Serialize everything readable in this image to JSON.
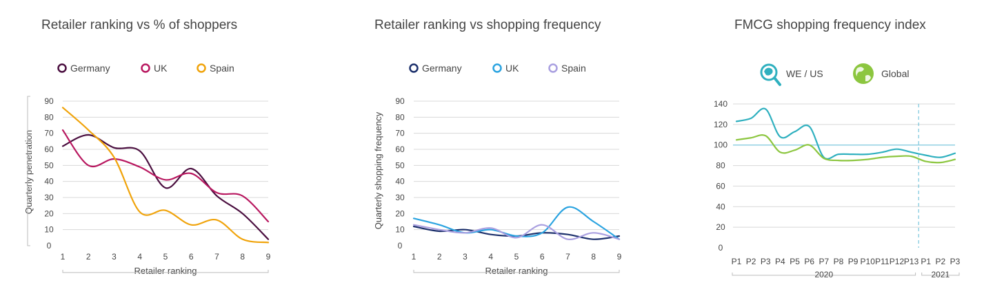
{
  "chart_data": [
    {
      "type": "line",
      "title": "Retailer ranking vs % of shoppers",
      "xlabel": "Retailer ranking",
      "ylabel": "Quarterly penetration",
      "x": [
        1,
        2,
        3,
        4,
        5,
        6,
        7,
        8,
        9
      ],
      "yticks": [
        0,
        10,
        20,
        30,
        40,
        50,
        60,
        70,
        80,
        90
      ],
      "ylim": [
        0,
        90
      ],
      "legend_position": "top",
      "series": [
        {
          "name": "Germany",
          "color": "#4a0e3f",
          "values": [
            62,
            69,
            61,
            59,
            36,
            48,
            31,
            20,
            4
          ]
        },
        {
          "name": "UK",
          "color": "#b8175f",
          "values": [
            72,
            50,
            54,
            49,
            41,
            45,
            33,
            31,
            15
          ]
        },
        {
          "name": "Spain",
          "color": "#f0a30a",
          "values": [
            86,
            72,
            55,
            21,
            22,
            13,
            16,
            4,
            2
          ]
        }
      ]
    },
    {
      "type": "line",
      "title": "Retailer ranking vs shopping frequency",
      "xlabel": "Retailer ranking",
      "ylabel": "Quarterly shopping frequency",
      "x": [
        1,
        2,
        3,
        4,
        5,
        6,
        7,
        8,
        9
      ],
      "yticks": [
        0,
        10,
        20,
        30,
        40,
        50,
        60,
        70,
        80,
        90
      ],
      "ylim": [
        0,
        90
      ],
      "legend_position": "top",
      "series": [
        {
          "name": "Germany",
          "color": "#1b2f6b",
          "values": [
            12,
            9,
            10,
            7,
            6,
            8,
            7,
            4,
            6
          ]
        },
        {
          "name": "UK",
          "color": "#2aa3e0",
          "values": [
            17,
            13,
            8,
            10,
            6,
            8,
            24,
            15,
            4
          ]
        },
        {
          "name": "Spain",
          "color": "#a99fe0",
          "values": [
            13,
            10,
            8,
            11,
            5,
            13,
            4,
            8,
            4
          ]
        }
      ]
    },
    {
      "type": "line",
      "title": "FMCG shopping frequency index",
      "x": [
        "P1",
        "P2",
        "P3",
        "P4",
        "P5",
        "P6",
        "P7",
        "P8",
        "P9",
        "P10",
        "P11",
        "P12",
        "P13",
        "P1",
        "P2",
        "P3"
      ],
      "period_groups": [
        {
          "label": "2020",
          "from": 0,
          "to": 12
        },
        {
          "label": "2021",
          "from": 13,
          "to": 15
        }
      ],
      "yticks": [
        0,
        20,
        40,
        60,
        80,
        100,
        120,
        140
      ],
      "ylim": [
        0,
        140
      ],
      "reference_line": 100,
      "legend_position": "top",
      "series": [
        {
          "name": "WE / US",
          "color": "#2fb0bf",
          "icon": "europe-magnifier-icon",
          "values": [
            123,
            126,
            135,
            108,
            113,
            118,
            88,
            91,
            91,
            91,
            93,
            96,
            93,
            90,
            88,
            92
          ]
        },
        {
          "name": "Global",
          "color": "#8cc63f",
          "icon": "globe-icon",
          "values": [
            105,
            107,
            109,
            93,
            95,
            100,
            87,
            85,
            85,
            86,
            88,
            89,
            89,
            84,
            83,
            86
          ]
        }
      ]
    }
  ]
}
